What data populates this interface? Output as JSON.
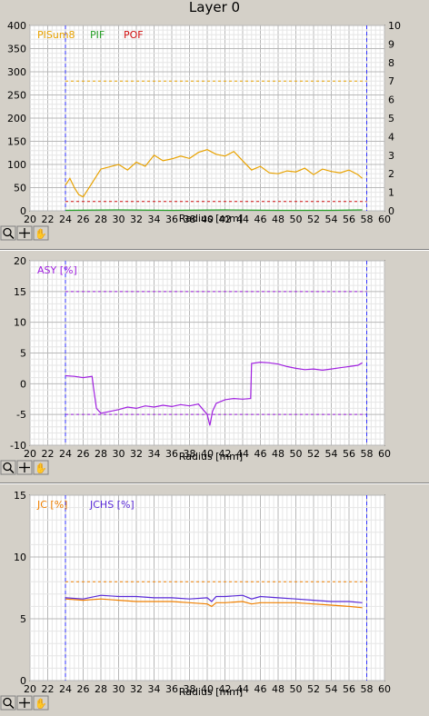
{
  "title": "Layer 0",
  "toolbar_icons": [
    "zoom-icon",
    "crosshair-icon",
    "pan-hand-icon"
  ],
  "chart_data": [
    {
      "type": "line",
      "xlabel": "Radius [mm]",
      "xlim": [
        20,
        60
      ],
      "xticks": [
        20,
        22,
        24,
        26,
        28,
        30,
        32,
        34,
        36,
        38,
        40,
        42,
        44,
        46,
        48,
        50,
        52,
        54,
        56,
        58,
        60
      ],
      "ylim": [
        0,
        400
      ],
      "yticks": [
        0,
        50,
        100,
        150,
        200,
        250,
        300,
        350,
        400
      ],
      "y2lim": [
        0,
        10
      ],
      "y2ticks": [
        0,
        1,
        2,
        3,
        4,
        5,
        6,
        7,
        8,
        9,
        10
      ],
      "legend": [
        "PISum8",
        "PIF",
        "POF"
      ],
      "legend_colors": [
        "#e8a200",
        "#2aa12a",
        "#d01010"
      ],
      "markers_x": [
        24,
        58
      ],
      "series": [
        {
          "name": "PISum8",
          "color": "#e8a200",
          "x": [
            24,
            24.5,
            25,
            25.5,
            26,
            26.5,
            27,
            27.5,
            28,
            29,
            30,
            31,
            32,
            33,
            34,
            35,
            36,
            37,
            38,
            39,
            40,
            41,
            42,
            43,
            44,
            45,
            46,
            47,
            48,
            49,
            50,
            51,
            52,
            53,
            54,
            55,
            56,
            57,
            57.5
          ],
          "values": [
            55,
            70,
            50,
            35,
            30,
            45,
            60,
            75,
            90,
            95,
            100,
            88,
            105,
            96,
            120,
            108,
            112,
            118,
            113,
            126,
            132,
            122,
            118,
            128,
            108,
            88,
            96,
            82,
            80,
            86,
            84,
            92,
            78,
            90,
            85,
            82,
            88,
            78,
            70
          ]
        },
        {
          "name": "PIF",
          "color": "#2aa12a",
          "x": [
            24,
            30,
            36,
            42,
            48,
            54,
            57.5
          ],
          "values": [
            1,
            2,
            1,
            2,
            1,
            1,
            2
          ]
        }
      ],
      "thresholds": [
        {
          "y": 280,
          "color": "#e8a200"
        },
        {
          "y": 20,
          "color": "#d01010"
        }
      ]
    },
    {
      "type": "line",
      "xlabel": "Radius [mm]",
      "xlim": [
        20,
        60
      ],
      "xticks": [
        20,
        22,
        24,
        26,
        28,
        30,
        32,
        34,
        36,
        38,
        40,
        42,
        44,
        46,
        48,
        50,
        52,
        54,
        56,
        58,
        60
      ],
      "ylim": [
        -10,
        20
      ],
      "yticks": [
        -10,
        -5,
        0,
        5,
        10,
        15,
        20
      ],
      "legend": [
        "ASY [%]"
      ],
      "legend_colors": [
        "#a020e0"
      ],
      "markers_x": [
        24,
        58
      ],
      "series": [
        {
          "name": "ASY [%]",
          "color": "#a020e0",
          "x": [
            24,
            25,
            26,
            27,
            27.2,
            27.5,
            28,
            29,
            30,
            31,
            32,
            33,
            34,
            35,
            36,
            37,
            38,
            39,
            40,
            40.3,
            40.6,
            41,
            42,
            43,
            44,
            44.9,
            45,
            46,
            47,
            48,
            49,
            50,
            51,
            52,
            53,
            54,
            55,
            56,
            57,
            57.5
          ],
          "values": [
            1.3,
            1.2,
            1.0,
            1.2,
            -1,
            -4,
            -4.8,
            -4.5,
            -4.2,
            -3.8,
            -4.0,
            -3.6,
            -3.8,
            -3.5,
            -3.7,
            -3.4,
            -3.6,
            -3.3,
            -5.0,
            -6.8,
            -4.5,
            -3.2,
            -2.6,
            -2.4,
            -2.5,
            -2.4,
            3.3,
            3.5,
            3.4,
            3.2,
            2.8,
            2.5,
            2.3,
            2.4,
            2.2,
            2.4,
            2.6,
            2.8,
            3.0,
            3.4
          ]
        }
      ],
      "thresholds": [
        {
          "y": 15,
          "color": "#a020e0"
        },
        {
          "y": -5,
          "color": "#a020e0"
        }
      ]
    },
    {
      "type": "line",
      "xlabel": "Radius [mm]",
      "xlim": [
        20,
        60
      ],
      "xticks": [
        20,
        22,
        24,
        26,
        28,
        30,
        32,
        34,
        36,
        38,
        40,
        42,
        44,
        46,
        48,
        50,
        52,
        54,
        56,
        58,
        60
      ],
      "ylim": [
        0,
        15
      ],
      "yticks": [
        0,
        5,
        10,
        15
      ],
      "legend": [
        "JC [%]",
        "JCHS [%]"
      ],
      "legend_colors": [
        "#f08000",
        "#5a2ad8"
      ],
      "markers_x": [
        24,
        58
      ],
      "series": [
        {
          "name": "JC [%]",
          "color": "#f08000",
          "x": [
            24,
            26,
            28,
            30,
            32,
            34,
            36,
            38,
            40,
            40.5,
            41,
            42,
            44,
            45,
            46,
            48,
            50,
            52,
            54,
            56,
            57.5
          ],
          "values": [
            6.6,
            6.5,
            6.6,
            6.5,
            6.4,
            6.4,
            6.4,
            6.3,
            6.2,
            6.0,
            6.3,
            6.3,
            6.4,
            6.2,
            6.3,
            6.3,
            6.3,
            6.2,
            6.1,
            6.0,
            5.9
          ]
        },
        {
          "name": "JCHS [%]",
          "color": "#5a2ad8",
          "x": [
            24,
            26,
            28,
            30,
            32,
            34,
            36,
            38,
            40,
            40.5,
            41,
            42,
            44,
            45,
            46,
            48,
            50,
            52,
            54,
            56,
            57.5
          ],
          "values": [
            6.7,
            6.6,
            6.9,
            6.8,
            6.8,
            6.7,
            6.7,
            6.6,
            6.7,
            6.4,
            6.8,
            6.8,
            6.9,
            6.6,
            6.8,
            6.7,
            6.6,
            6.5,
            6.4,
            6.4,
            6.3
          ]
        }
      ],
      "thresholds": [
        {
          "y": 8,
          "color": "#f08000"
        }
      ]
    }
  ]
}
